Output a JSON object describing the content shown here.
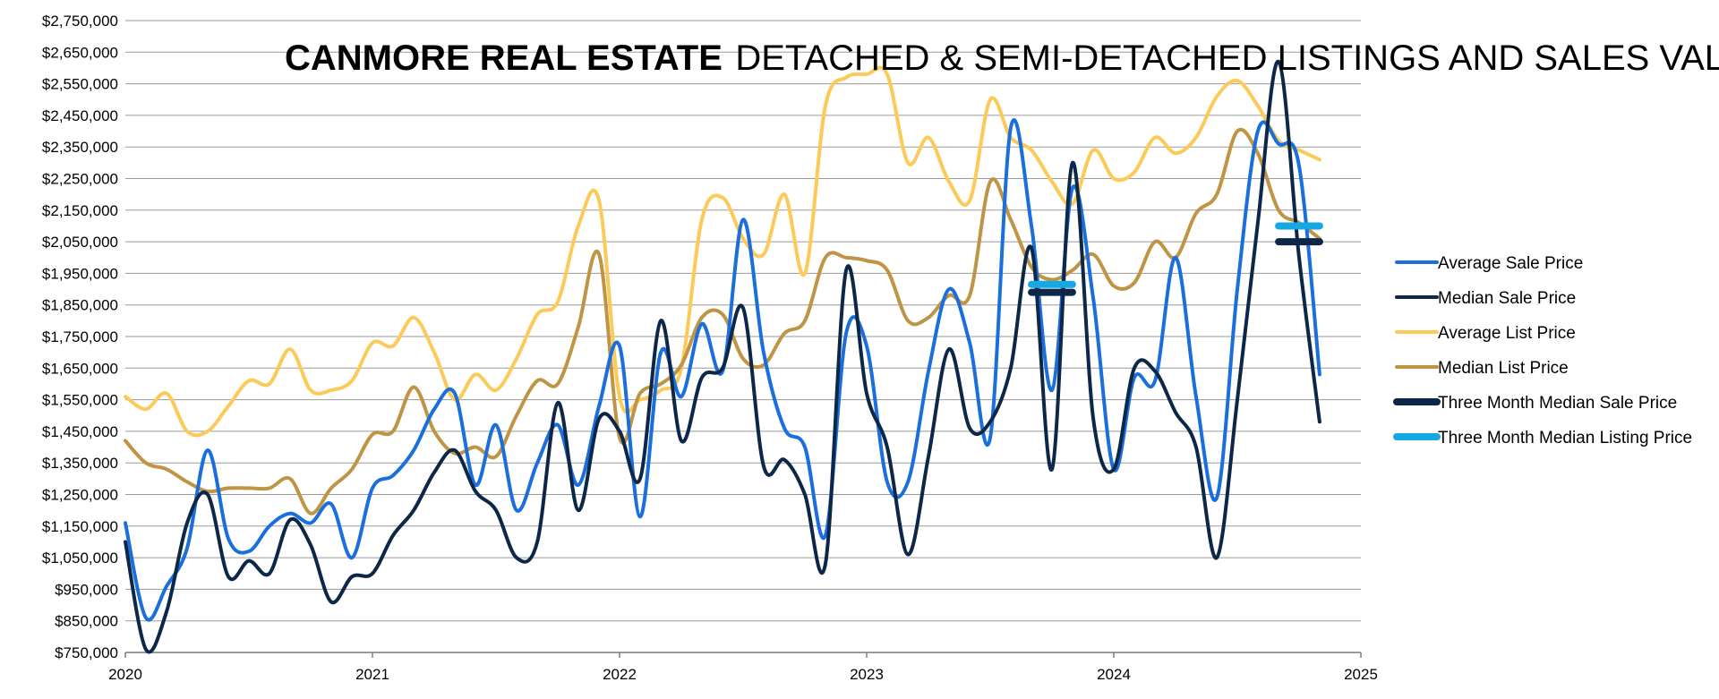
{
  "chart_data": {
    "type": "line",
    "title_bold": "CANMORE REAL ESTATE",
    "title_rest": "DETACHED & SEMI-DETACHED LISTINGS AND SALES VALUES",
    "ylim": [
      750000,
      2750000
    ],
    "y_ticks": [
      750000,
      850000,
      950000,
      1050000,
      1150000,
      1250000,
      1350000,
      1450000,
      1550000,
      1650000,
      1750000,
      1850000,
      1950000,
      2050000,
      2150000,
      2250000,
      2350000,
      2450000,
      2550000,
      2650000,
      2750000
    ],
    "y_tick_labels": [
      "$750,000",
      "$850,000",
      "$950,000",
      "$1,050,000",
      "$1,150,000",
      "$1,250,000",
      "$1,350,000",
      "$1,450,000",
      "$1,550,000",
      "$1,650,000",
      "$1,750,000",
      "$1,850,000",
      "$1,950,000",
      "$2,050,000",
      "$2,150,000",
      "$2,250,000",
      "$2,350,000",
      "$2,450,000",
      "$2,550,000",
      "$2,650,000",
      "$2,750,000"
    ],
    "xlim": [
      2020,
      2025
    ],
    "x_ticks": [
      2020,
      2021,
      2022,
      2023,
      2024,
      2025
    ],
    "x_tick_labels": [
      "2020",
      "2021",
      "2022",
      "2023",
      "2024",
      "2025"
    ],
    "grid": "horizontal",
    "legend_position": "right",
    "series": [
      {
        "name": "Average Sale Price",
        "color": "#1a6fdc",
        "style": "line",
        "points": [
          [
            2020.0,
            1160000
          ],
          [
            2020.083,
            860000
          ],
          [
            2020.167,
            960000
          ],
          [
            2020.25,
            1080000
          ],
          [
            2020.333,
            1390000
          ],
          [
            2020.417,
            1110000
          ],
          [
            2020.5,
            1070000
          ],
          [
            2020.583,
            1150000
          ],
          [
            2020.667,
            1190000
          ],
          [
            2020.75,
            1160000
          ],
          [
            2020.833,
            1220000
          ],
          [
            2020.917,
            1050000
          ],
          [
            2021.0,
            1270000
          ],
          [
            2021.083,
            1310000
          ],
          [
            2021.167,
            1390000
          ],
          [
            2021.25,
            1520000
          ],
          [
            2021.333,
            1570000
          ],
          [
            2021.417,
            1280000
          ],
          [
            2021.5,
            1470000
          ],
          [
            2021.583,
            1200000
          ],
          [
            2021.667,
            1350000
          ],
          [
            2021.75,
            1470000
          ],
          [
            2021.833,
            1280000
          ],
          [
            2021.917,
            1530000
          ],
          [
            2022.0,
            1720000
          ],
          [
            2022.083,
            1180000
          ],
          [
            2022.167,
            1700000
          ],
          [
            2022.25,
            1560000
          ],
          [
            2022.333,
            1790000
          ],
          [
            2022.417,
            1640000
          ],
          [
            2022.5,
            2120000
          ],
          [
            2022.583,
            1700000
          ],
          [
            2022.667,
            1460000
          ],
          [
            2022.75,
            1400000
          ],
          [
            2022.833,
            1120000
          ],
          [
            2022.917,
            1760000
          ],
          [
            2023.0,
            1720000
          ],
          [
            2023.083,
            1290000
          ],
          [
            2023.167,
            1290000
          ],
          [
            2023.25,
            1640000
          ],
          [
            2023.333,
            1900000
          ],
          [
            2023.417,
            1730000
          ],
          [
            2023.5,
            1430000
          ],
          [
            2023.583,
            2410000
          ],
          [
            2023.667,
            2100000
          ],
          [
            2023.75,
            1580000
          ],
          [
            2023.833,
            2220000
          ],
          [
            2023.917,
            1870000
          ],
          [
            2024.0,
            1330000
          ],
          [
            2024.083,
            1620000
          ],
          [
            2024.167,
            1610000
          ],
          [
            2024.25,
            2000000
          ],
          [
            2024.333,
            1560000
          ],
          [
            2024.417,
            1240000
          ],
          [
            2024.5,
            1900000
          ],
          [
            2024.583,
            2400000
          ],
          [
            2024.667,
            2360000
          ],
          [
            2024.75,
            2290000
          ],
          [
            2024.833,
            1630000
          ]
        ]
      },
      {
        "name": "Median Sale Price",
        "color": "#0d2748",
        "style": "line",
        "points": [
          [
            2020.0,
            1100000
          ],
          [
            2020.083,
            760000
          ],
          [
            2020.167,
            880000
          ],
          [
            2020.25,
            1160000
          ],
          [
            2020.333,
            1250000
          ],
          [
            2020.417,
            990000
          ],
          [
            2020.5,
            1040000
          ],
          [
            2020.583,
            1000000
          ],
          [
            2020.667,
            1170000
          ],
          [
            2020.75,
            1090000
          ],
          [
            2020.833,
            910000
          ],
          [
            2020.917,
            990000
          ],
          [
            2021.0,
            1000000
          ],
          [
            2021.083,
            1120000
          ],
          [
            2021.167,
            1200000
          ],
          [
            2021.25,
            1320000
          ],
          [
            2021.333,
            1390000
          ],
          [
            2021.417,
            1260000
          ],
          [
            2021.5,
            1200000
          ],
          [
            2021.583,
            1050000
          ],
          [
            2021.667,
            1100000
          ],
          [
            2021.75,
            1540000
          ],
          [
            2021.833,
            1200000
          ],
          [
            2021.917,
            1490000
          ],
          [
            2022.0,
            1450000
          ],
          [
            2022.083,
            1300000
          ],
          [
            2022.167,
            1800000
          ],
          [
            2022.25,
            1420000
          ],
          [
            2022.333,
            1620000
          ],
          [
            2022.417,
            1650000
          ],
          [
            2022.5,
            1840000
          ],
          [
            2022.583,
            1340000
          ],
          [
            2022.667,
            1360000
          ],
          [
            2022.75,
            1250000
          ],
          [
            2022.833,
            1030000
          ],
          [
            2022.917,
            1960000
          ],
          [
            2023.0,
            1570000
          ],
          [
            2023.083,
            1400000
          ],
          [
            2023.167,
            1060000
          ],
          [
            2023.25,
            1370000
          ],
          [
            2023.333,
            1710000
          ],
          [
            2023.417,
            1460000
          ],
          [
            2023.5,
            1480000
          ],
          [
            2023.583,
            1650000
          ],
          [
            2023.667,
            2030000
          ],
          [
            2023.75,
            1330000
          ],
          [
            2023.833,
            2300000
          ],
          [
            2023.917,
            1490000
          ],
          [
            2024.0,
            1330000
          ],
          [
            2024.083,
            1650000
          ],
          [
            2024.167,
            1640000
          ],
          [
            2024.25,
            1510000
          ],
          [
            2024.333,
            1400000
          ],
          [
            2024.417,
            1050000
          ],
          [
            2024.5,
            1550000
          ],
          [
            2024.583,
            2110000
          ],
          [
            2024.667,
            2620000
          ],
          [
            2024.75,
            2000000
          ],
          [
            2024.833,
            1480000
          ]
        ]
      },
      {
        "name": "Average List Price",
        "color": "#fbca58",
        "style": "line",
        "points": [
          [
            2020.0,
            1560000
          ],
          [
            2020.083,
            1520000
          ],
          [
            2020.167,
            1570000
          ],
          [
            2020.25,
            1450000
          ],
          [
            2020.333,
            1450000
          ],
          [
            2020.417,
            1530000
          ],
          [
            2020.5,
            1610000
          ],
          [
            2020.583,
            1600000
          ],
          [
            2020.667,
            1710000
          ],
          [
            2020.75,
            1580000
          ],
          [
            2020.833,
            1580000
          ],
          [
            2020.917,
            1610000
          ],
          [
            2021.0,
            1730000
          ],
          [
            2021.083,
            1720000
          ],
          [
            2021.167,
            1810000
          ],
          [
            2021.25,
            1700000
          ],
          [
            2021.333,
            1550000
          ],
          [
            2021.417,
            1630000
          ],
          [
            2021.5,
            1580000
          ],
          [
            2021.583,
            1680000
          ],
          [
            2021.667,
            1820000
          ],
          [
            2021.75,
            1860000
          ],
          [
            2021.833,
            2100000
          ],
          [
            2021.917,
            2180000
          ],
          [
            2022.0,
            1560000
          ],
          [
            2022.083,
            1550000
          ],
          [
            2022.167,
            1580000
          ],
          [
            2022.25,
            1650000
          ],
          [
            2022.333,
            2120000
          ],
          [
            2022.417,
            2190000
          ],
          [
            2022.5,
            2060000
          ],
          [
            2022.583,
            2010000
          ],
          [
            2022.667,
            2200000
          ],
          [
            2022.75,
            1950000
          ],
          [
            2022.833,
            2480000
          ],
          [
            2022.917,
            2570000
          ],
          [
            2023.0,
            2580000
          ],
          [
            2023.083,
            2580000
          ],
          [
            2023.167,
            2300000
          ],
          [
            2023.25,
            2380000
          ],
          [
            2023.333,
            2240000
          ],
          [
            2023.417,
            2180000
          ],
          [
            2023.5,
            2500000
          ],
          [
            2023.583,
            2380000
          ],
          [
            2023.667,
            2340000
          ],
          [
            2023.75,
            2240000
          ],
          [
            2023.833,
            2170000
          ],
          [
            2023.917,
            2340000
          ],
          [
            2024.0,
            2250000
          ],
          [
            2024.083,
            2270000
          ],
          [
            2024.167,
            2380000
          ],
          [
            2024.25,
            2330000
          ],
          [
            2024.333,
            2380000
          ],
          [
            2024.417,
            2510000
          ],
          [
            2024.5,
            2560000
          ],
          [
            2024.583,
            2480000
          ],
          [
            2024.667,
            2370000
          ],
          [
            2024.75,
            2340000
          ],
          [
            2024.833,
            2310000
          ]
        ]
      },
      {
        "name": "Median List Price",
        "color": "#bf9545",
        "style": "line",
        "points": [
          [
            2020.0,
            1420000
          ],
          [
            2020.083,
            1350000
          ],
          [
            2020.167,
            1330000
          ],
          [
            2020.25,
            1290000
          ],
          [
            2020.333,
            1260000
          ],
          [
            2020.417,
            1270000
          ],
          [
            2020.5,
            1270000
          ],
          [
            2020.583,
            1270000
          ],
          [
            2020.667,
            1300000
          ],
          [
            2020.75,
            1190000
          ],
          [
            2020.833,
            1270000
          ],
          [
            2020.917,
            1330000
          ],
          [
            2021.0,
            1440000
          ],
          [
            2021.083,
            1450000
          ],
          [
            2021.167,
            1590000
          ],
          [
            2021.25,
            1450000
          ],
          [
            2021.333,
            1380000
          ],
          [
            2021.417,
            1400000
          ],
          [
            2021.5,
            1370000
          ],
          [
            2021.583,
            1500000
          ],
          [
            2021.667,
            1610000
          ],
          [
            2021.75,
            1600000
          ],
          [
            2021.833,
            1780000
          ],
          [
            2021.917,
            2010000
          ],
          [
            2022.0,
            1430000
          ],
          [
            2022.083,
            1570000
          ],
          [
            2022.167,
            1600000
          ],
          [
            2022.25,
            1660000
          ],
          [
            2022.333,
            1810000
          ],
          [
            2022.417,
            1820000
          ],
          [
            2022.5,
            1680000
          ],
          [
            2022.583,
            1660000
          ],
          [
            2022.667,
            1760000
          ],
          [
            2022.75,
            1800000
          ],
          [
            2022.833,
            2000000
          ],
          [
            2022.917,
            2000000
          ],
          [
            2023.0,
            1990000
          ],
          [
            2023.083,
            1960000
          ],
          [
            2023.167,
            1800000
          ],
          [
            2023.25,
            1810000
          ],
          [
            2023.333,
            1880000
          ],
          [
            2023.417,
            1880000
          ],
          [
            2023.5,
            2240000
          ],
          [
            2023.583,
            2120000
          ],
          [
            2023.667,
            1970000
          ],
          [
            2023.75,
            1930000
          ],
          [
            2023.833,
            1960000
          ],
          [
            2023.917,
            2010000
          ],
          [
            2024.0,
            1910000
          ],
          [
            2024.083,
            1920000
          ],
          [
            2024.167,
            2050000
          ],
          [
            2024.25,
            2000000
          ],
          [
            2024.333,
            2140000
          ],
          [
            2024.417,
            2200000
          ],
          [
            2024.5,
            2400000
          ],
          [
            2024.583,
            2330000
          ],
          [
            2024.667,
            2150000
          ],
          [
            2024.75,
            2110000
          ],
          [
            2024.833,
            2060000
          ]
        ]
      },
      {
        "name": "Three Month Median Sale Price",
        "color": "#0d2748",
        "style": "segment",
        "segments": [
          [
            [
              2023.667,
              1890000
            ],
            [
              2023.833,
              1890000
            ]
          ],
          [
            [
              2024.667,
              2050000
            ],
            [
              2024.833,
              2050000
            ]
          ]
        ]
      },
      {
        "name": "Three Month Median Listing Price",
        "color": "#17a8e3",
        "style": "segment",
        "segments": [
          [
            [
              2023.667,
              1915000
            ],
            [
              2023.833,
              1915000
            ]
          ],
          [
            [
              2024.667,
              2100000
            ],
            [
              2024.833,
              2100000
            ]
          ]
        ]
      }
    ]
  }
}
